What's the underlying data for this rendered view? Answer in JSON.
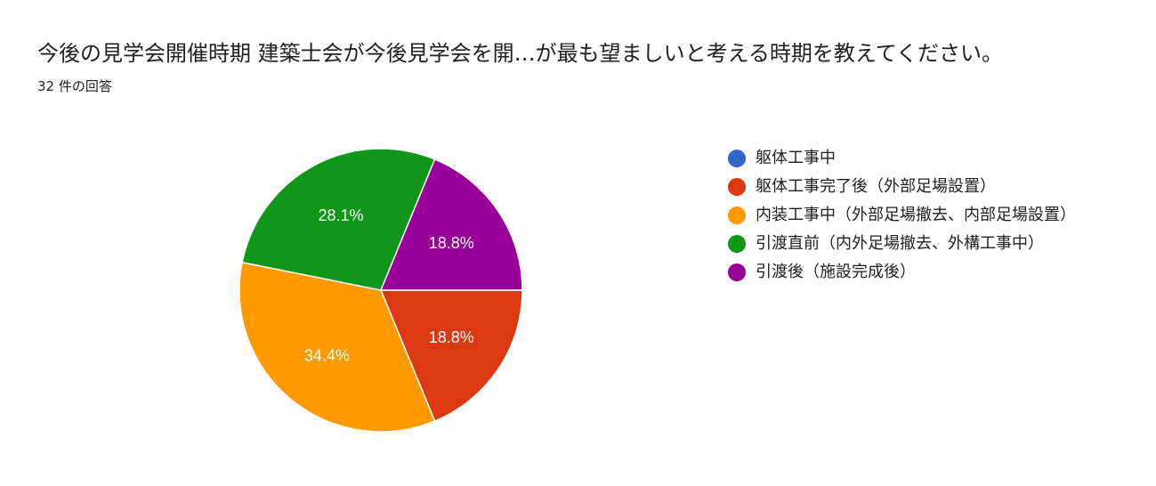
{
  "header": {
    "title": "今後の見学会開催時期 建築士会が今後見学会を開…が最も望ましいと考える時期を教えてください。",
    "response_count": "32 件の回答"
  },
  "chart_data": {
    "type": "pie",
    "title": "今後の見学会開催時期 建築士会が今後見学会を開…が最も望ましいと考える時期を教えてください。",
    "legend_position": "right",
    "slices": [
      {
        "label": "躯体工事中",
        "value": 0.0,
        "value_label": "",
        "color": "#3366cc"
      },
      {
        "label": "躯体工事完了後（外部足場設置）",
        "value": 18.8,
        "value_label": "18.8%",
        "color": "#dc3912"
      },
      {
        "label": "内装工事中（外部足場撤去、内部足場設置）",
        "value": 34.4,
        "value_label": "34.4%",
        "color": "#ff9900"
      },
      {
        "label": "引渡直前（内外足場撤去、外構工事中）",
        "value": 28.1,
        "value_label": "28.1%",
        "color": "#109618"
      },
      {
        "label": "引渡後（施設完成後）",
        "value": 18.8,
        "value_label": "18.8%",
        "color": "#990099"
      }
    ]
  }
}
